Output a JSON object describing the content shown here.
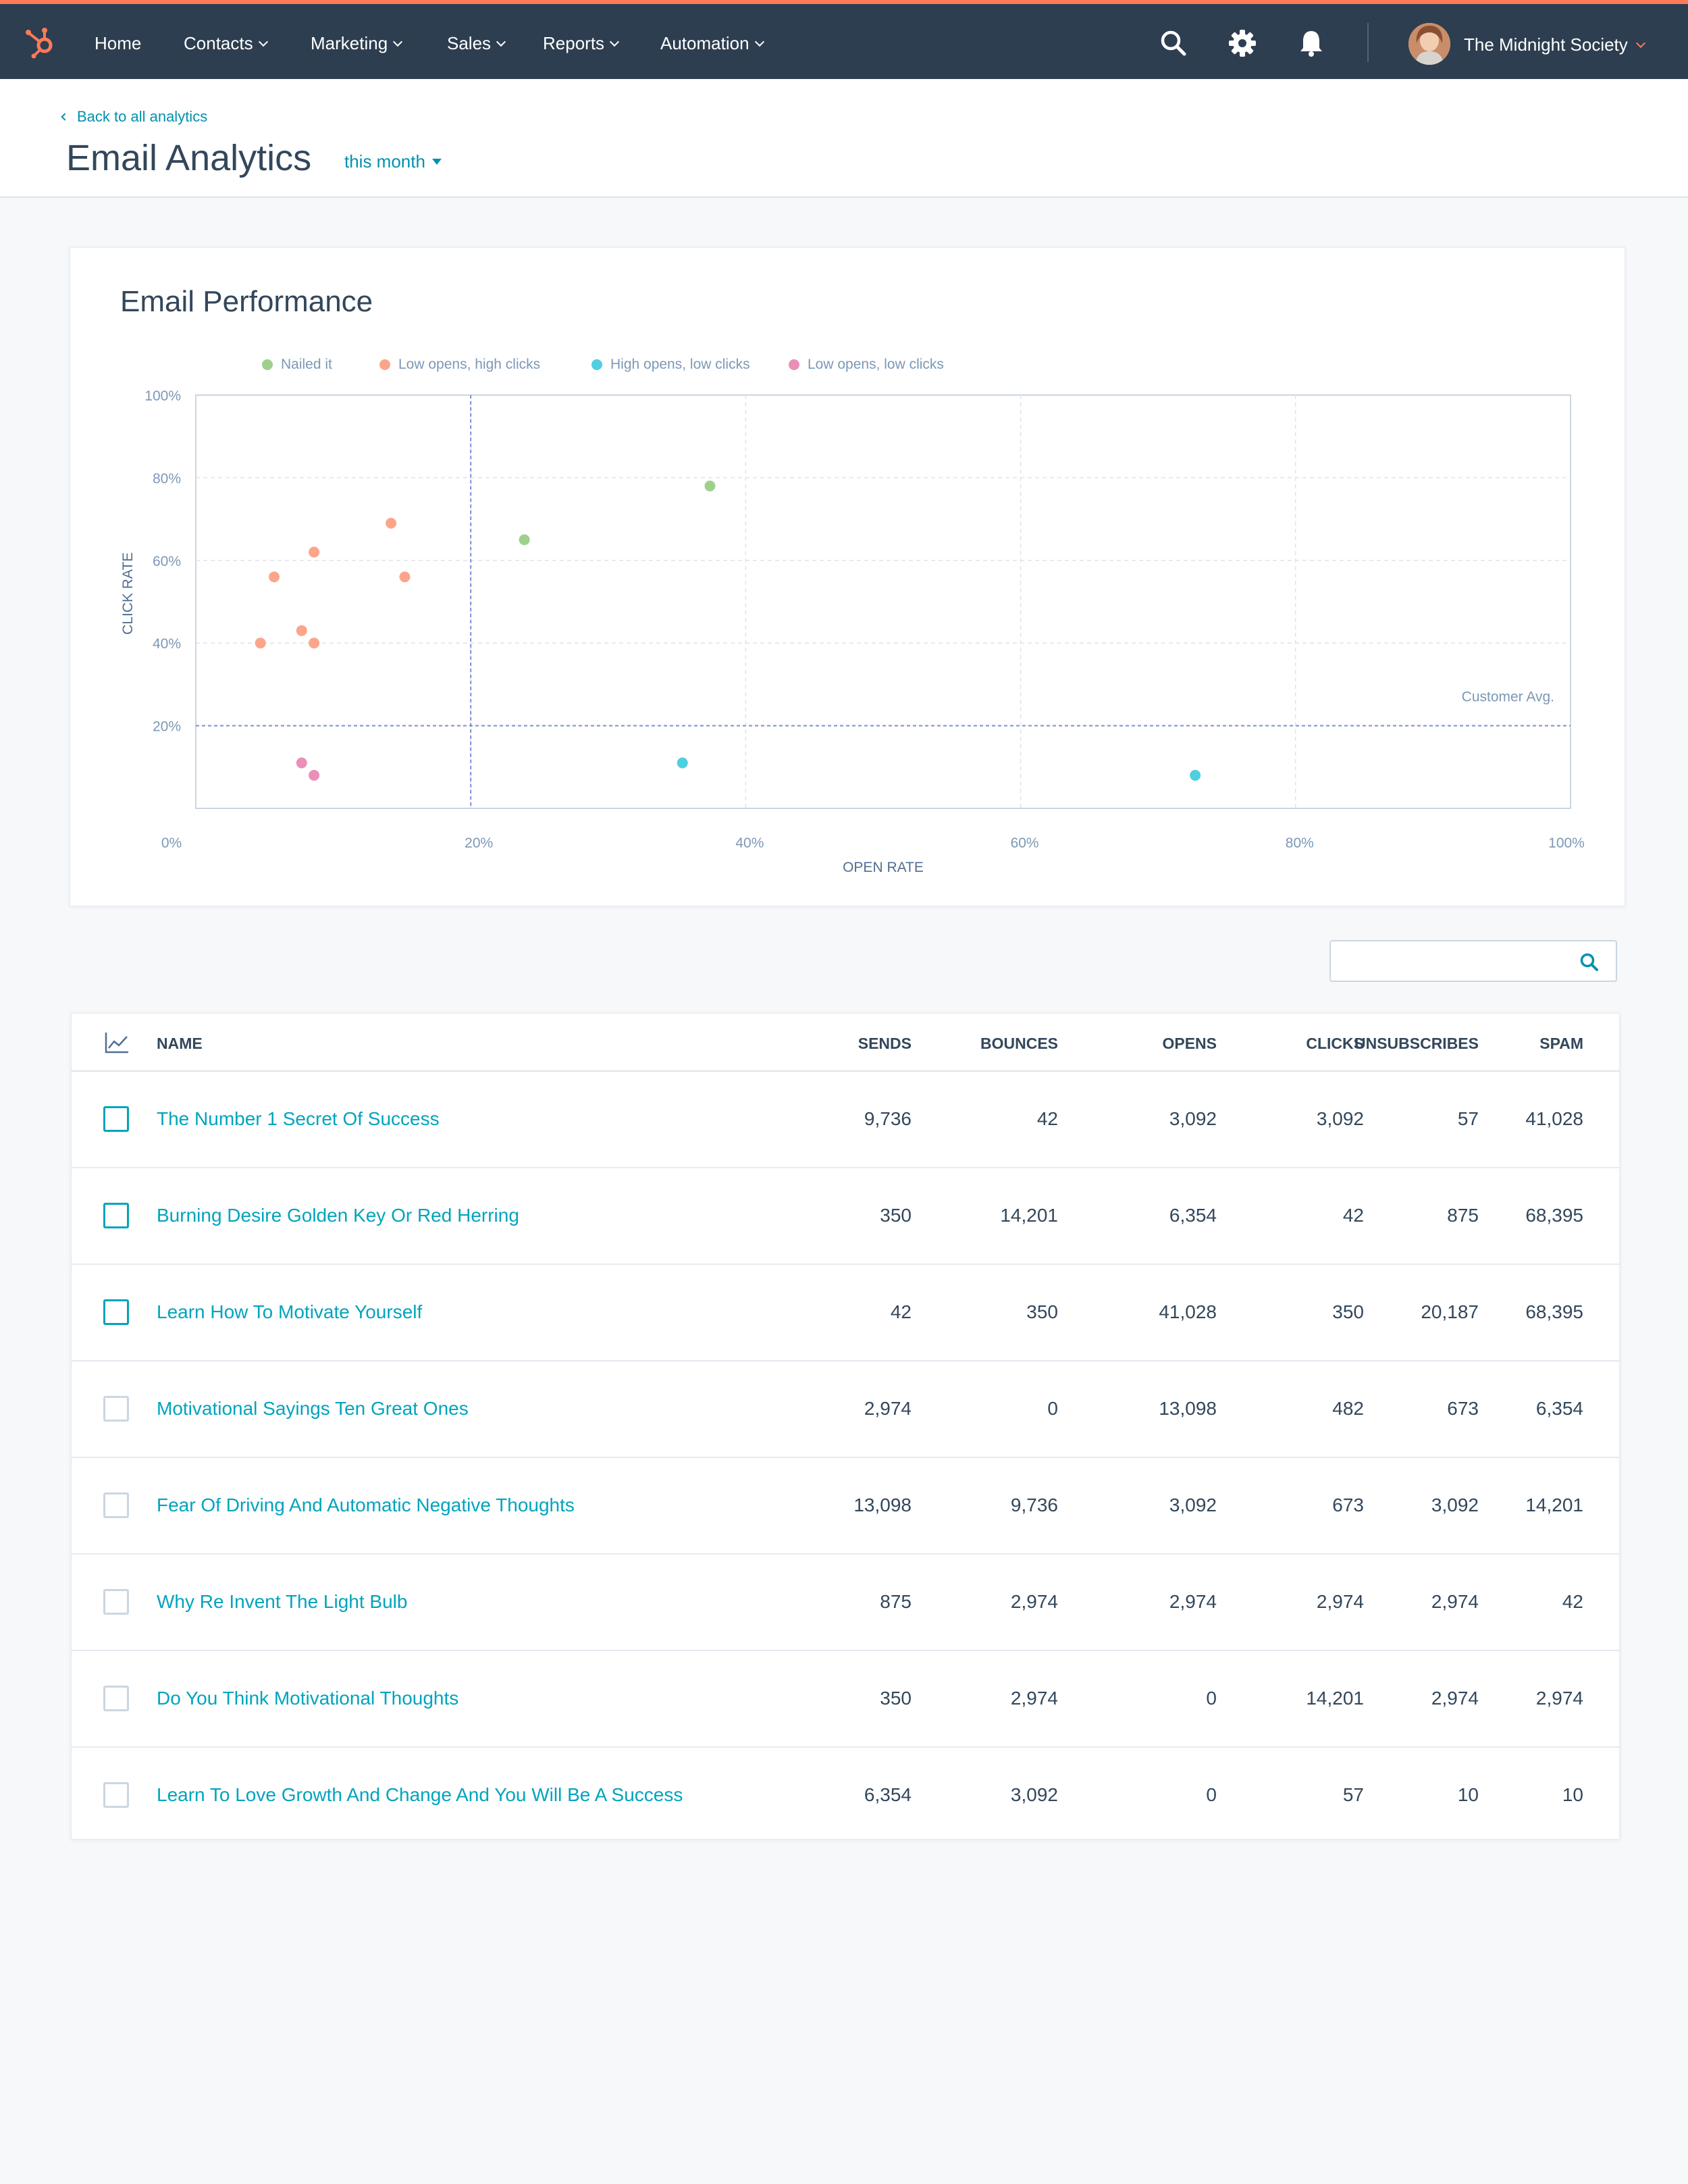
{
  "colors": {
    "nav_bg": "#2d3e50",
    "nav_accent": "#ff7a59",
    "link": "#00a4bd",
    "series_nailed": "#9ed08b",
    "series_low_open_high_click": "#fca58a",
    "series_high_open_low_click": "#4fcfe0",
    "series_low_low": "#ea8fb8"
  },
  "nav": {
    "logo_icon": "hubspot-sprocket-icon",
    "items": [
      {
        "label": "Home",
        "has_menu": false
      },
      {
        "label": "Contacts",
        "has_menu": true
      },
      {
        "label": "Marketing",
        "has_menu": true
      },
      {
        "label": "Sales",
        "has_menu": true
      },
      {
        "label": "Reports",
        "has_menu": true
      },
      {
        "label": "Automation",
        "has_menu": true
      }
    ],
    "icons": [
      "search-icon",
      "gear-icon",
      "bell-icon"
    ],
    "account_name": "The Midnight Society"
  },
  "header": {
    "back_link": "Back to all analytics",
    "title": "Email Analytics",
    "range_label": "this month"
  },
  "chart_card": {
    "title": "Email Performance"
  },
  "chart_data": {
    "type": "scatter",
    "title": "Email Performance",
    "xlabel": "OPEN RATE",
    "ylabel": "CLICK RATE",
    "xlim": [
      0,
      100
    ],
    "ylim": [
      0,
      100
    ],
    "x_ticks": [
      "0%",
      "20%",
      "40%",
      "60%",
      "80%",
      "100%"
    ],
    "y_ticks": [
      "20%",
      "40%",
      "60%",
      "80%",
      "100%"
    ],
    "grid": true,
    "legend_position": "top-left",
    "reference_lines": {
      "vertical_x": 20,
      "horizontal_y": 20,
      "horizontal_label": "Customer Avg."
    },
    "series": [
      {
        "name": "Nailed it",
        "color": "#9ed08b",
        "points": [
          {
            "x": 23.9,
            "y": 65
          },
          {
            "x": 37.4,
            "y": 78
          }
        ]
      },
      {
        "name": "Low opens, high clicks",
        "color": "#fca58a",
        "points": [
          {
            "x": 14.2,
            "y": 69
          },
          {
            "x": 8.6,
            "y": 62
          },
          {
            "x": 5.7,
            "y": 56
          },
          {
            "x": 15.2,
            "y": 56
          },
          {
            "x": 7.7,
            "y": 43
          },
          {
            "x": 4.7,
            "y": 40
          },
          {
            "x": 8.6,
            "y": 40
          }
        ]
      },
      {
        "name": "High opens, low clicks",
        "color": "#4fcfe0",
        "points": [
          {
            "x": 35.4,
            "y": 11
          },
          {
            "x": 72.7,
            "y": 8
          }
        ]
      },
      {
        "name": "Low opens, low clicks",
        "color": "#ea8fb8",
        "points": [
          {
            "x": 7.7,
            "y": 11
          },
          {
            "x": 8.6,
            "y": 8
          }
        ]
      }
    ]
  },
  "search": {
    "placeholder": "",
    "icon": "search-icon"
  },
  "table": {
    "chart_toggle_icon": "line-chart-icon",
    "columns": [
      "NAME",
      "SENDS",
      "BOUNCES",
      "OPENS",
      "CLICKS",
      "UNSUBSCRIBES",
      "SPAM"
    ],
    "rows": [
      {
        "name": "The Number 1 Secret Of Success",
        "sends": "9,736",
        "bounces": "42",
        "opens": "3,092",
        "clicks": "3,092",
        "unsubscribes": "57",
        "spam": "41,028",
        "highlighted": true
      },
      {
        "name": "Burning Desire Golden Key Or Red Herring",
        "sends": "350",
        "bounces": "14,201",
        "opens": "6,354",
        "clicks": "42",
        "unsubscribes": "875",
        "spam": "68,395",
        "highlighted": true
      },
      {
        "name": "Learn How To Motivate Yourself",
        "sends": "42",
        "bounces": "350",
        "opens": "41,028",
        "clicks": "350",
        "unsubscribes": "20,187",
        "spam": "68,395",
        "highlighted": true
      },
      {
        "name": "Motivational Sayings Ten Great Ones",
        "sends": "2,974",
        "bounces": "0",
        "opens": "13,098",
        "clicks": "482",
        "unsubscribes": "673",
        "spam": "6,354",
        "highlighted": false
      },
      {
        "name": "Fear Of Driving And Automatic Negative Thoughts",
        "sends": "13,098",
        "bounces": "9,736",
        "opens": "3,092",
        "clicks": "673",
        "unsubscribes": "3,092",
        "spam": "14,201",
        "highlighted": false
      },
      {
        "name": "Why Re Invent The Light Bulb",
        "sends": "875",
        "bounces": "2,974",
        "opens": "2,974",
        "clicks": "2,974",
        "unsubscribes": "2,974",
        "spam": "42",
        "highlighted": false
      },
      {
        "name": "Do You Think Motivational Thoughts",
        "sends": "350",
        "bounces": "2,974",
        "opens": "0",
        "clicks": "14,201",
        "unsubscribes": "2,974",
        "spam": "2,974",
        "highlighted": false
      },
      {
        "name": "Learn To Love Growth And Change And You Will Be A Success",
        "sends": "6,354",
        "bounces": "3,092",
        "opens": "0",
        "clicks": "57",
        "unsubscribes": "10",
        "spam": "10",
        "highlighted": false
      }
    ]
  }
}
